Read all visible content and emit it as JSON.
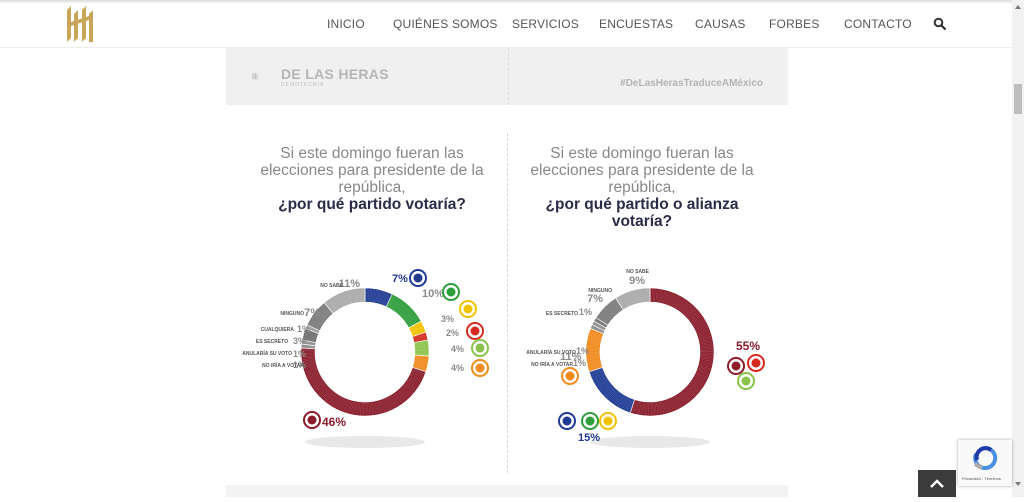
{
  "nav": {
    "items": [
      "INICIO",
      "QUIÉNES SOMOS",
      "SERVICIOS",
      "ENCUESTAS",
      "CAUSAS",
      "FORBES",
      "CONTACTO"
    ]
  },
  "icons": {
    "search": "search-icon",
    "logo": "delasheras-logo",
    "to_top": "chevron-up-icon",
    "recaptcha": "recaptcha-icon"
  },
  "poster": {
    "brand": "DE LAS HERAS",
    "brand_sub": "DEMOTECNIA",
    "hashtag": "#DeLasHerasTraduceAMéxico"
  },
  "recaptcha": {
    "links": "Privacidad - Términos"
  },
  "chart_data": [
    {
      "type": "pie",
      "question": "Si este domingo fueran las elecciones para presidente de la república,",
      "question_bold": "¿por qué partido votaría?",
      "slices": [
        {
          "label": "PAN",
          "value": 7,
          "color": "#1f3a93"
        },
        {
          "label": "PRI",
          "value": 10,
          "color": "#2e9e3a"
        },
        {
          "label": "PRD",
          "value": 3,
          "color": "#f2c200"
        },
        {
          "label": "PT",
          "value": 2,
          "color": "#d42b1e"
        },
        {
          "label": "PVEM",
          "value": 4,
          "color": "#8bc34a"
        },
        {
          "label": "MC",
          "value": 4,
          "color": "#f08a1c"
        },
        {
          "label": "MORENA",
          "value": 46,
          "color": "#8a1c2b"
        },
        {
          "label": "NO IRÍA A VOTAR",
          "value": 1,
          "color": "#8a8a8a"
        },
        {
          "label": "ANULARÍA SU VOTO",
          "value": 1,
          "color": "#8a8a8a"
        },
        {
          "label": "ES SECRETO",
          "value": 3,
          "color": "#6e6e6e"
        },
        {
          "label": "CUALQUIERA",
          "value": 1,
          "color": "#9b9b9b"
        },
        {
          "label": "NINGUNO",
          "value": 7,
          "color": "#7a7a7a"
        },
        {
          "label": "NO SABE",
          "value": 11,
          "color": "#a9a9a9"
        }
      ],
      "value_labels": [
        "7%",
        "10%",
        "3%",
        "2%",
        "4%",
        "4%",
        "46%",
        "1%",
        "1%",
        "3%",
        "1%",
        "7%",
        "11%"
      ]
    },
    {
      "type": "pie",
      "question": "Si este domingo fueran las elecciones para presidente de la república,",
      "question_bold": "¿por qué partido o alianza votaría?",
      "slices": [
        {
          "label": "MORENA-PT-PVEM",
          "value": 55,
          "color": "#8a1c2b"
        },
        {
          "label": "PAN-PRI-PRD",
          "value": 15,
          "color": "#1f3a93"
        },
        {
          "label": "MC",
          "value": 11,
          "color": "#f08a1c"
        },
        {
          "label": "NO IRÍA A VOTAR",
          "value": 1,
          "color": "#8a8a8a"
        },
        {
          "label": "ANULARÍA SU VOTO",
          "value": 1,
          "color": "#8a8a8a"
        },
        {
          "label": "ES SECRETO",
          "value": 1,
          "color": "#6e6e6e"
        },
        {
          "label": "NINGUNO",
          "value": 7,
          "color": "#7a7a7a"
        },
        {
          "label": "NO SABE",
          "value": 9,
          "color": "#a9a9a9"
        }
      ],
      "value_labels": [
        "55%",
        "15%",
        "11%",
        "1%",
        "1%",
        "1%",
        "7%",
        "9%"
      ]
    }
  ]
}
